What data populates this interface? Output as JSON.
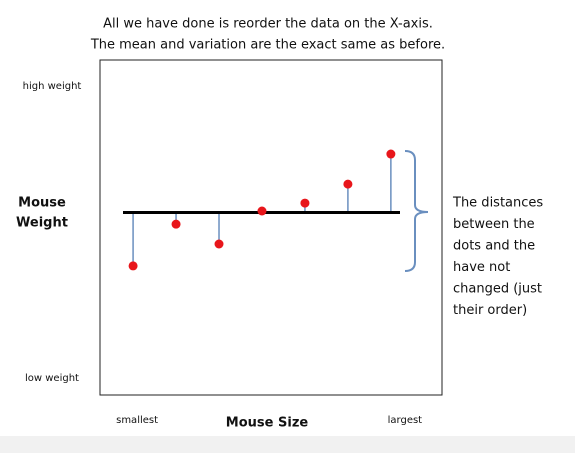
{
  "chart_data": {
    "type": "scatter",
    "title": [
      "All we have done is reorder the data on the X-axis.",
      "The mean and variation are the exact same as before."
    ],
    "x_label": "Mouse Size",
    "y_label": [
      "Mouse",
      "Weight"
    ],
    "annotation": [
      "The distances",
      "between the",
      "dots and the",
      "have not",
      "changed (just",
      "their order)"
    ],
    "x": [
      1,
      2,
      3,
      4,
      5,
      6,
      7
    ],
    "values": [
      3.84,
      5.27,
      4.59,
      5.72,
      5.99,
      6.64,
      7.67
    ],
    "mean": 5.67,
    "color": "#e8161b",
    "line_color": "#6a8fbf",
    "xlim": [
      0.23,
      8.19
    ],
    "ylim": [
      -0.58,
      10.89
    ],
    "xticks": [
      {
        "value": 1,
        "label": "smallest"
      },
      {
        "value": 7,
        "label": "largest"
      }
    ],
    "yticks": [
      {
        "value": 10,
        "label": "high weight"
      },
      {
        "value": 0,
        "label": "low weight"
      }
    ]
  }
}
